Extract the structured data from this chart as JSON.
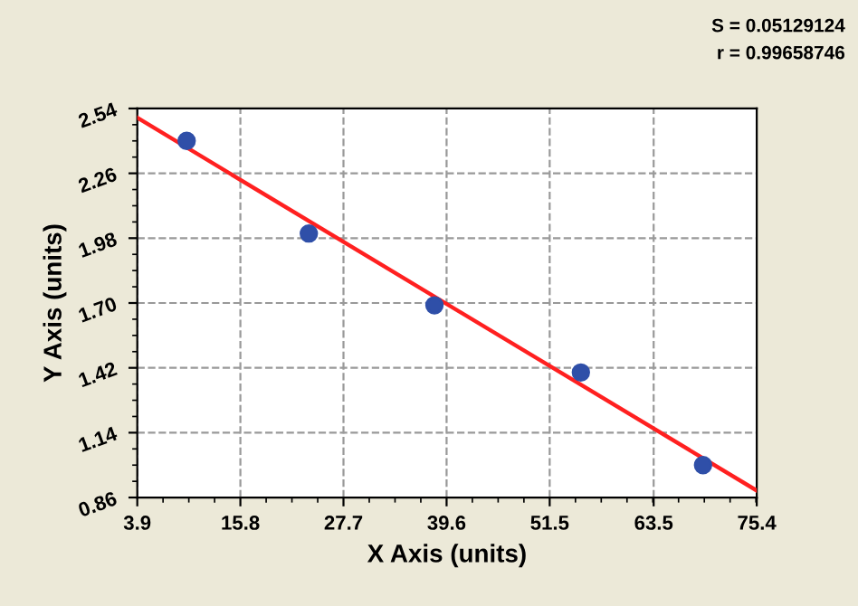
{
  "chart_data": {
    "type": "scatter",
    "xlabel": "X Axis (units)",
    "ylabel": "Y Axis (units)",
    "annotations": [
      "S = 0.05129124",
      "r = 0.99658746"
    ],
    "series": [
      {
        "color": "#2f4fa8",
        "marker": "circle",
        "x": [
          9.6,
          23.7,
          38.2,
          55.1,
          69.2
        ],
        "values": [
          2.4,
          2.0,
          1.69,
          1.4,
          1.0
        ]
      },
      {
        "type": "line",
        "color": "#ff2020",
        "marker": "none",
        "line_style": "solid",
        "x": [
          3.9,
          75.4
        ],
        "values": [
          2.5,
          0.89
        ]
      }
    ],
    "xlim": [
      3.9,
      75.4
    ],
    "xticks": [
      3.9,
      15.8,
      27.7,
      39.6,
      51.5,
      63.5,
      75.4
    ],
    "ylim": [
      0.86,
      2.54
    ],
    "yticks": [
      0.86,
      1.14,
      1.42,
      {
        "value": 1.7,
        "label": "1.70"
      },
      1.98,
      2.26,
      2.54
    ],
    "grid": true
  }
}
